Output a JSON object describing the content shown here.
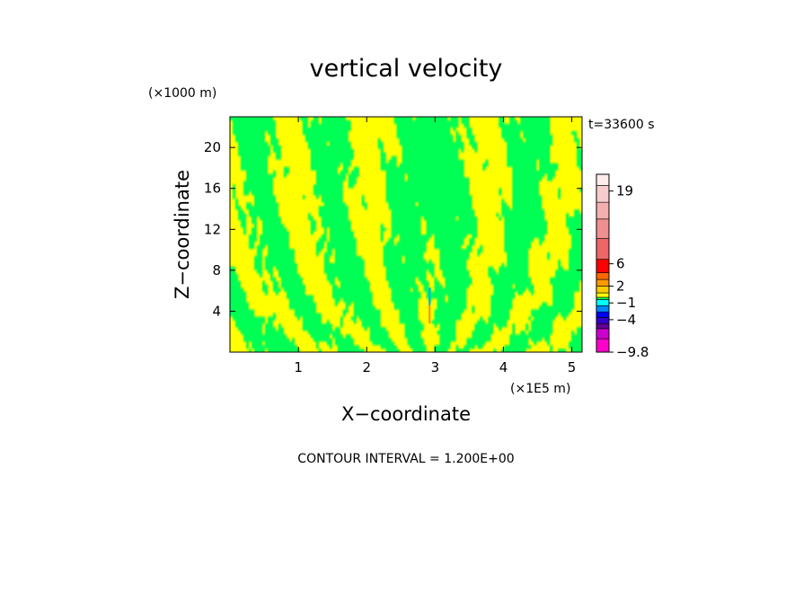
{
  "chart_data": {
    "type": "heatmap",
    "title": "vertical velocity",
    "xlabel": "X−coordinate",
    "ylabel": "Z−coordinate",
    "x_scale_label": "(×1E5 m)",
    "y_scale_label": "(×1000 m)",
    "time_label": "t=33600 s",
    "footer": "CONTOUR INTERVAL = 1.200E+00",
    "xlim": [
      0,
      5.15
    ],
    "ylim": [
      0,
      23
    ],
    "x_ticks": [
      1,
      2,
      3,
      4,
      5
    ],
    "y_ticks": [
      4,
      8,
      12,
      16,
      20
    ],
    "x_tick_labels": [
      "1",
      "2",
      "3",
      "4",
      "5"
    ],
    "y_tick_labels": [
      "4",
      "8",
      "12",
      "16",
      "20"
    ],
    "field_colors": {
      "positive_small": "#ffff00",
      "negative_small": "#00ff55",
      "strong_up": "#ff8800",
      "strong_down": "#00aaff"
    },
    "anomaly": {
      "x": 2.92,
      "z_top": 6.3,
      "z_bottom": 2.8
    },
    "colorbar": {
      "min": -9.8,
      "max": 22,
      "labels": [
        {
          "text": "19",
          "value": 19
        },
        {
          "text": "6",
          "value": 6
        },
        {
          "text": "2",
          "value": 2
        },
        {
          "text": "−1",
          "value": -1
        },
        {
          "text": "−4",
          "value": -4
        },
        {
          "text": "−9.8",
          "value": -9.8
        }
      ],
      "bands": [
        {
          "from": -9.8,
          "to": -7.4,
          "color": "#ff00cc"
        },
        {
          "from": -7.4,
          "to": -5.6,
          "color": "#cc00cc"
        },
        {
          "from": -5.6,
          "to": -4.7,
          "color": "#660099"
        },
        {
          "from": -4.7,
          "to": -3.6,
          "color": "#3300cc"
        },
        {
          "from": -3.6,
          "to": -2.6,
          "color": "#0000ff"
        },
        {
          "from": -2.6,
          "to": -1.5,
          "color": "#0088ff"
        },
        {
          "from": -1.5,
          "to": -0.4,
          "color": "#00ffff"
        },
        {
          "from": -0.4,
          "to": 0.0,
          "color": "#00ff55"
        },
        {
          "from": 0.0,
          "to": 0.8,
          "color": "#ffff00"
        },
        {
          "from": 0.8,
          "to": 2.0,
          "color": "#ffcc00"
        },
        {
          "from": 2.0,
          "to": 3.2,
          "color": "#ff9900"
        },
        {
          "from": 3.2,
          "to": 4.4,
          "color": "#ff6600"
        },
        {
          "from": 4.4,
          "to": 6.8,
          "color": "#ff0000"
        },
        {
          "from": 6.8,
          "to": 10.5,
          "color": "#ee6666"
        },
        {
          "from": 10.5,
          "to": 14.0,
          "color": "#f08f8f"
        },
        {
          "from": 14.0,
          "to": 17.0,
          "color": "#f4b0b0"
        },
        {
          "from": 17.0,
          "to": 20.0,
          "color": "#f8cccc"
        },
        {
          "from": 20.0,
          "to": 22.0,
          "color": "#fcecec"
        }
      ]
    }
  }
}
